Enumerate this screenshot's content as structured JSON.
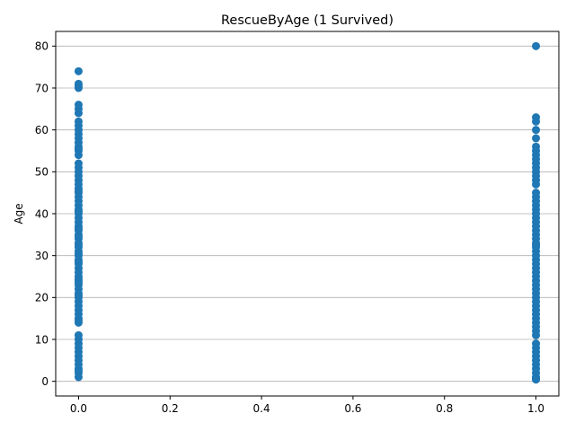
{
  "chart_data": {
    "type": "scatter",
    "title": "RescueByAge (1 Survived)",
    "xlabel": "",
    "ylabel": "Age",
    "xlim": [
      -0.05,
      1.05
    ],
    "ylim": [
      -3.5,
      83.5
    ],
    "x_ticks": [
      0.0,
      0.2,
      0.4,
      0.6,
      0.8,
      1.0
    ],
    "x_tick_labels": [
      "0.0",
      "0.2",
      "0.4",
      "0.6",
      "0.8",
      "1.0"
    ],
    "y_ticks": [
      0,
      10,
      20,
      30,
      40,
      50,
      60,
      70,
      80
    ],
    "y_tick_labels": [
      "0",
      "10",
      "20",
      "30",
      "40",
      "50",
      "60",
      "70",
      "80"
    ],
    "grid": "horizontal",
    "color": "#1f77b4",
    "series": [
      {
        "x": 0,
        "values": [
          1,
          2,
          2.5,
          3,
          4,
          5,
          6,
          7,
          8,
          9,
          10,
          11,
          14,
          14.5,
          15,
          16,
          17,
          18,
          19,
          20,
          20.5,
          21,
          22,
          23,
          23.5,
          24,
          24.5,
          25,
          26,
          27,
          28,
          28.5,
          29,
          30,
          30.5,
          31,
          32,
          32.5,
          33,
          34,
          34.5,
          35,
          36,
          36.5,
          37,
          38,
          39,
          40,
          40.5,
          41,
          42,
          43,
          44,
          45,
          45.5,
          46,
          47,
          48,
          49,
          50,
          51,
          52,
          54,
          55,
          55.5,
          56,
          57,
          58,
          59,
          60,
          61,
          62,
          64,
          65,
          66,
          70,
          70.5,
          71,
          74
        ]
      },
      {
        "x": 1,
        "values": [
          0.42,
          0.67,
          0.75,
          0.83,
          0.92,
          1,
          2,
          3,
          4,
          5,
          6,
          7,
          8,
          9,
          11,
          12,
          13,
          14,
          15,
          16,
          17,
          18,
          19,
          20,
          21,
          22,
          23,
          24,
          25,
          26,
          27,
          28,
          29,
          30,
          31,
          32,
          32.5,
          33,
          34,
          35,
          36,
          37,
          38,
          39,
          40,
          41,
          42,
          43,
          44,
          45,
          47,
          48,
          49,
          50,
          51,
          52,
          53,
          54,
          55,
          56,
          58,
          60,
          62,
          63,
          80
        ]
      }
    ]
  }
}
